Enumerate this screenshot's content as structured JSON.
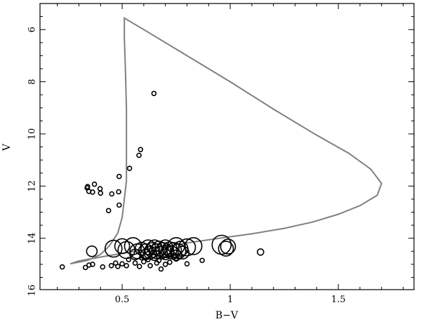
{
  "chart_data": {
    "type": "scatter",
    "title": "",
    "xlabel": "B−V",
    "ylabel": "V",
    "xlim": [
      0.12,
      1.85
    ],
    "ylim": [
      15.97,
      5.0
    ],
    "y_inverted": true,
    "grid": false,
    "xticks": [
      0.5,
      1,
      1.5
    ],
    "xtick_labels": [
      "0.5",
      "1",
      "1.5"
    ],
    "yticks": [
      6,
      8,
      10,
      12,
      14,
      16
    ],
    "ytick_labels": [
      "6",
      "8",
      "10",
      "12",
      "14",
      "16"
    ],
    "isochrone": {
      "color": "#808080",
      "points": [
        [
          0.26,
          14.98
        ],
        [
          0.34,
          14.85
        ],
        [
          0.4,
          14.62
        ],
        [
          0.44,
          14.3
        ],
        [
          0.48,
          13.8
        ],
        [
          0.5,
          13.2
        ],
        [
          0.51,
          12.5
        ],
        [
          0.52,
          11.8
        ],
        [
          0.52,
          10.5
        ],
        [
          0.52,
          9.0
        ],
        [
          0.515,
          7.5
        ],
        [
          0.51,
          6.3
        ],
        [
          0.51,
          5.56
        ],
        [
          0.6,
          6.0
        ],
        [
          0.8,
          7.0
        ],
        [
          1.0,
          8.0
        ],
        [
          1.2,
          9.05
        ],
        [
          1.4,
          10.05
        ],
        [
          1.55,
          10.75
        ],
        [
          1.65,
          11.35
        ],
        [
          1.7,
          11.9
        ],
        [
          1.68,
          12.35
        ],
        [
          1.6,
          12.75
        ],
        [
          1.5,
          13.08
        ],
        [
          1.38,
          13.38
        ],
        [
          1.25,
          13.62
        ],
        [
          1.1,
          13.83
        ],
        [
          0.95,
          14.0
        ],
        [
          0.8,
          14.18
        ],
        [
          0.65,
          14.38
        ],
        [
          0.52,
          14.55
        ],
        [
          0.4,
          14.72
        ],
        [
          0.3,
          14.87
        ],
        [
          0.26,
          14.98
        ]
      ]
    },
    "series": [
      {
        "marker": "open-circle",
        "points": [
          [
            0.647,
            8.45
          ],
          [
            0.585,
            10.6
          ],
          [
            0.578,
            10.82
          ],
          [
            0.534,
            11.32
          ],
          [
            0.486,
            11.63
          ],
          [
            0.484,
            12.22
          ],
          [
            0.486,
            12.73
          ],
          [
            0.452,
            12.3
          ],
          [
            0.437,
            12.94
          ],
          [
            0.398,
            12.1
          ],
          [
            0.4,
            12.27
          ],
          [
            0.372,
            11.93
          ],
          [
            0.363,
            12.23
          ],
          [
            0.346,
            12.2
          ],
          [
            0.34,
            12.02
          ],
          [
            0.338,
            12.07
          ],
          [
            0.223,
            15.1
          ],
          [
            0.33,
            15.12
          ],
          [
            0.347,
            15.03
          ],
          [
            0.363,
            15.0
          ],
          [
            0.41,
            15.1
          ],
          [
            0.45,
            15.05
          ],
          [
            0.47,
            14.95
          ],
          [
            0.48,
            15.08
          ],
          [
            0.5,
            14.98
          ],
          [
            0.52,
            15.05
          ],
          [
            0.56,
            14.95
          ],
          [
            0.58,
            15.08
          ],
          [
            0.6,
            14.9
          ],
          [
            0.63,
            15.05
          ],
          [
            0.66,
            14.95
          ],
          [
            0.68,
            15.18
          ],
          [
            0.7,
            15.0
          ],
          [
            0.72,
            14.92
          ],
          [
            0.75,
            14.8
          ],
          [
            0.8,
            14.98
          ],
          [
            0.87,
            14.85
          ],
          [
            0.59,
            14.75
          ],
          [
            0.53,
            14.82
          ],
          [
            0.62,
            14.82
          ],
          [
            0.74,
            14.72
          ],
          [
            0.67,
            14.85
          ],
          [
            1.14,
            14.53
          ]
        ],
        "sizes": [
          1,
          1,
          1,
          1,
          1,
          1,
          1,
          1,
          1,
          1,
          1,
          1,
          1,
          1,
          1,
          1,
          1,
          1,
          1,
          1,
          1,
          1,
          1,
          1,
          1,
          1,
          1,
          1,
          1,
          1,
          1,
          1,
          1,
          1,
          1,
          1,
          1,
          1,
          1,
          1,
          1,
          1,
          1.5
        ]
      },
      {
        "marker": "open-circle-large",
        "points": [
          [
            0.36,
            14.5
          ],
          [
            0.46,
            14.4
          ],
          [
            0.5,
            14.3
          ],
          [
            0.52,
            14.45
          ],
          [
            0.55,
            14.3
          ],
          [
            0.57,
            14.5
          ],
          [
            0.59,
            14.4
          ],
          [
            0.61,
            14.5
          ],
          [
            0.62,
            14.35
          ],
          [
            0.63,
            14.55
          ],
          [
            0.64,
            14.45
          ],
          [
            0.65,
            14.35
          ],
          [
            0.66,
            14.5
          ],
          [
            0.67,
            14.4
          ],
          [
            0.68,
            14.55
          ],
          [
            0.69,
            14.45
          ],
          [
            0.7,
            14.35
          ],
          [
            0.71,
            14.5
          ],
          [
            0.72,
            14.42
          ],
          [
            0.73,
            14.55
          ],
          [
            0.74,
            14.45
          ],
          [
            0.75,
            14.3
          ],
          [
            0.76,
            14.5
          ],
          [
            0.77,
            14.4
          ],
          [
            0.78,
            14.55
          ],
          [
            0.8,
            14.35
          ],
          [
            0.83,
            14.3
          ],
          [
            0.96,
            14.25
          ],
          [
            0.98,
            14.4
          ],
          [
            0.99,
            14.32
          ],
          [
            0.61,
            14.62
          ],
          [
            0.65,
            14.65
          ],
          [
            0.7,
            14.62
          ],
          [
            0.75,
            14.65
          ],
          [
            0.56,
            14.62
          ]
        ],
        "sizes": [
          2.5,
          4,
          3.5,
          4,
          4,
          3.5,
          3,
          3.5,
          3.5,
          3,
          3.5,
          3.5,
          3.5,
          3.5,
          3,
          3.5,
          3.5,
          3,
          3.5,
          3,
          3.5,
          4,
          3.5,
          3.5,
          3,
          4,
          4,
          4.5,
          3.5,
          3.5,
          2.5,
          2.5,
          2.5,
          2.5,
          2.5
        ]
      }
    ]
  }
}
